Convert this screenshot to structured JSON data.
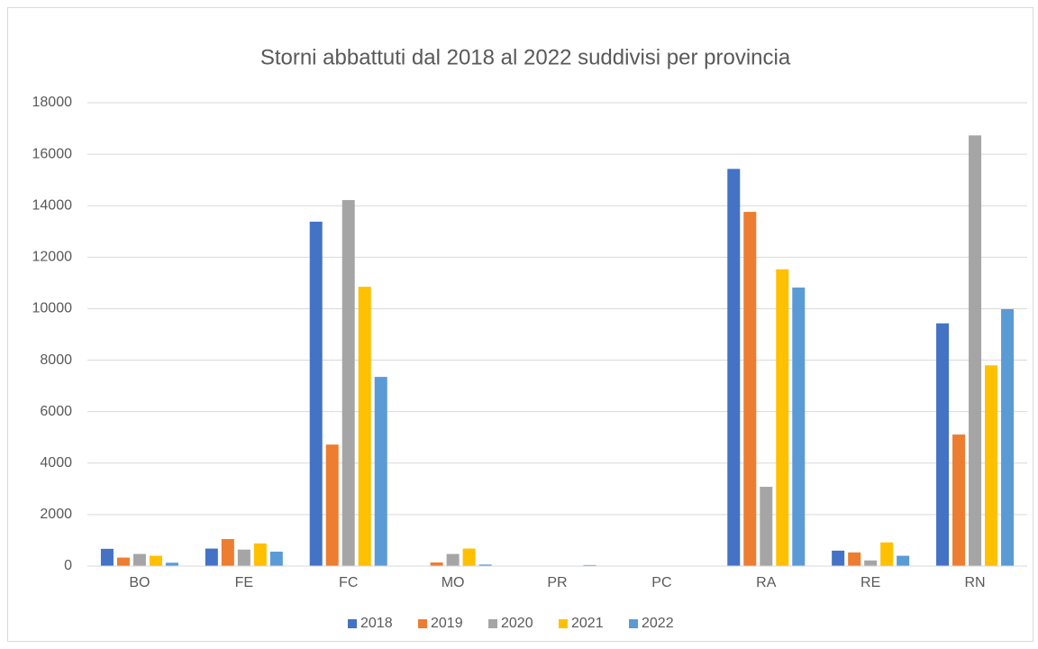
{
  "chart_data": {
    "type": "bar",
    "title": "Storni abbattuti dal 2018 al 2022 suddivisi per provincia",
    "categories": [
      "BO",
      "FE",
      "FC",
      "MO",
      "PR",
      "PC",
      "RA",
      "RE",
      "RN"
    ],
    "series": [
      {
        "name": "2018",
        "color": "#4472c4",
        "values": [
          670,
          680,
          13380,
          0,
          0,
          0,
          15430,
          600,
          9430
        ]
      },
      {
        "name": "2019",
        "color": "#ed7d31",
        "values": [
          330,
          1050,
          4720,
          140,
          0,
          0,
          13760,
          530,
          5110
        ]
      },
      {
        "name": "2020",
        "color": "#a5a5a5",
        "values": [
          470,
          640,
          14220,
          470,
          0,
          0,
          3080,
          220,
          16730
        ]
      },
      {
        "name": "2021",
        "color": "#ffc000",
        "values": [
          400,
          880,
          10850,
          680,
          0,
          0,
          11530,
          920,
          7800
        ]
      },
      {
        "name": "2022",
        "color": "#5b9bd5",
        "values": [
          130,
          560,
          7350,
          60,
          40,
          0,
          10820,
          400,
          9980
        ]
      }
    ],
    "ylim": [
      0,
      18000
    ],
    "yticks": [
      0,
      2000,
      4000,
      6000,
      8000,
      10000,
      12000,
      14000,
      16000,
      18000
    ],
    "grid": true,
    "legend": "bottom"
  }
}
